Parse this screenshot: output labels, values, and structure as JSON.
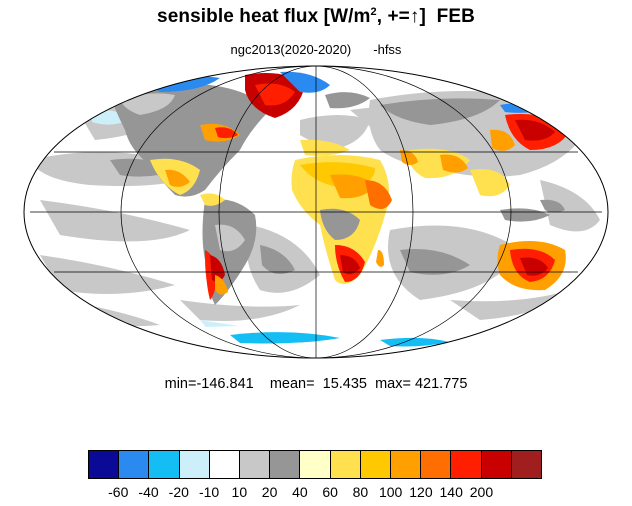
{
  "title": {
    "main": "sensible heat flux [W/m",
    "sup": "2",
    "rest": ", +=",
    "arrow": "↑",
    "month": "FEB"
  },
  "subtitle": {
    "case": "ngc2013(2020-2020)",
    "var": "-hfss"
  },
  "stats": {
    "min_label": "min=",
    "min": "-146.841",
    "mean_label": "mean=",
    "mean": "15.435",
    "max_label": "max=",
    "max": "421.775"
  },
  "colorbar": {
    "colors": [
      "#0a0a96",
      "#2a8af0",
      "#14bef5",
      "#cdeffa",
      "#ffffff",
      "#c8c8c8",
      "#969696",
      "#ffffc8",
      "#ffe150",
      "#ffc800",
      "#ffa000",
      "#ff6e00",
      "#ff1e00",
      "#c80000",
      "#a01e1e"
    ],
    "labels": [
      "-60",
      "-40",
      "-20",
      "-10",
      "10",
      "20",
      "40",
      "60",
      "80",
      "100",
      "120",
      "140",
      "200"
    ]
  },
  "map": {
    "projection": "Mollweide",
    "grid_lines": true,
    "coastlines": true,
    "land_colors": {
      "negative": "#2a8af0",
      "weak_negative": "#cdeffa",
      "neutral": "#c8c8c8",
      "dark_neutral": "#969696",
      "weak_positive": "#ffe150",
      "positive": "#ffa000",
      "strong_positive": "#ff1e00",
      "very_strong": "#c80000"
    }
  }
}
